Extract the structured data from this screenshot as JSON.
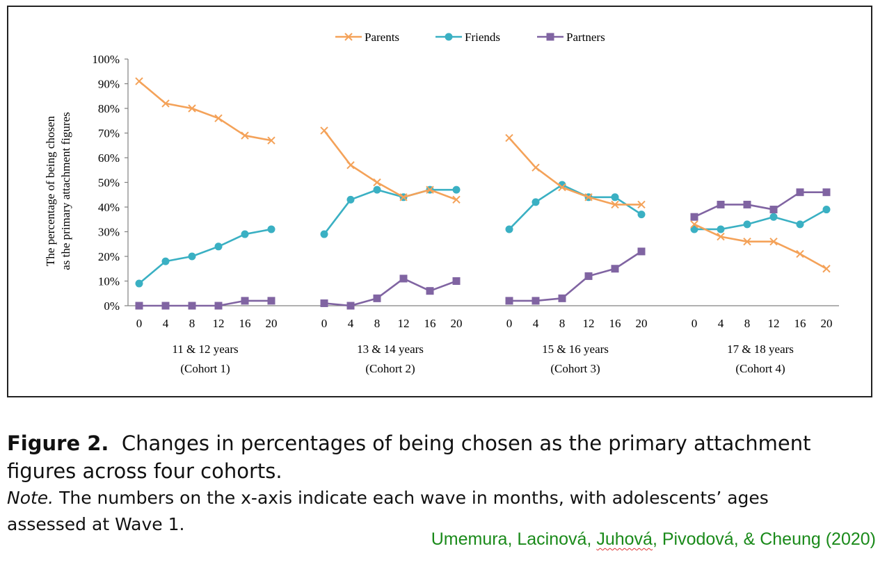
{
  "colors": {
    "parents": "#F4A259",
    "friends": "#3AB0C3",
    "partners": "#8064A2",
    "axis": "#808080",
    "credit": "#1a8a1a"
  },
  "chart_data": {
    "type": "line",
    "ylabel_line1": "The percentage of being chosen",
    "ylabel_line2": "as the primary attachment figures",
    "ylim": [
      0,
      100
    ],
    "yticks": [
      "0%",
      "10%",
      "20%",
      "30%",
      "40%",
      "50%",
      "60%",
      "70%",
      "80%",
      "90%",
      "100%"
    ],
    "x": [
      0,
      4,
      8,
      12,
      16,
      20
    ],
    "grid": false,
    "legend_position": "top-center",
    "legend": [
      "Parents",
      "Friends",
      "Partners"
    ],
    "cohorts": [
      {
        "label_line1": "11 & 12 years",
        "label_line2": "(Cohort 1)",
        "series": [
          {
            "name": "Parents",
            "values": [
              91,
              82,
              80,
              76,
              69,
              67
            ]
          },
          {
            "name": "Friends",
            "values": [
              9,
              18,
              20,
              24,
              29,
              31
            ]
          },
          {
            "name": "Partners",
            "values": [
              0,
              0,
              0,
              0,
              2,
              2
            ]
          }
        ]
      },
      {
        "label_line1": "13 & 14 years",
        "label_line2": "(Cohort 2)",
        "series": [
          {
            "name": "Parents",
            "values": [
              71,
              57,
              50,
              44,
              47,
              43
            ]
          },
          {
            "name": "Friends",
            "values": [
              29,
              43,
              47,
              44,
              47,
              47
            ]
          },
          {
            "name": "Partners",
            "values": [
              1,
              0,
              3,
              11,
              6,
              10
            ]
          }
        ]
      },
      {
        "label_line1": "15 & 16 years",
        "label_line2": "(Cohort 3)",
        "series": [
          {
            "name": "Parents",
            "values": [
              68,
              56,
              48,
              44,
              41,
              41
            ]
          },
          {
            "name": "Friends",
            "values": [
              31,
              42,
              49,
              44,
              44,
              37
            ]
          },
          {
            "name": "Partners",
            "values": [
              2,
              2,
              3,
              12,
              15,
              22
            ]
          }
        ]
      },
      {
        "label_line1": "17 & 18 years",
        "label_line2": "(Cohort 4)",
        "series": [
          {
            "name": "Parents",
            "values": [
              33,
              28,
              26,
              26,
              21,
              15
            ]
          },
          {
            "name": "Friends",
            "values": [
              31,
              31,
              33,
              36,
              33,
              39
            ]
          },
          {
            "name": "Partners",
            "values": [
              36,
              41,
              41,
              39,
              46,
              46
            ]
          }
        ]
      }
    ]
  },
  "caption": {
    "figure_label": "Figure 2.",
    "title": "Changes in percentages of being chosen as the primary attachment",
    "title_cont": "figures across four cohorts.",
    "note_label": "Note.",
    "note_text": "The numbers on the x-axis indicate each wave in months, with adolescents’ ages",
    "note_cont": "assessed at Wave 1."
  },
  "credit": {
    "part1": "Umemura, Lacinová, ",
    "part2": "Juhová",
    "part3": ", Pivodová, & Cheung (2020)"
  }
}
